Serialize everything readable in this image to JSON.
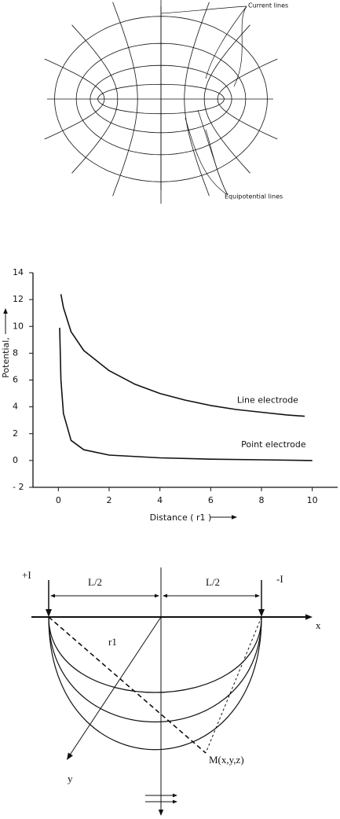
{
  "figure1": {
    "labels": [
      "Current lines",
      "Equipotential lines"
    ]
  },
  "chart_data": {
    "type": "line",
    "x_label": "Distance ( r1 )",
    "y_label": "Potential,",
    "xlim": [
      -1,
      11
    ],
    "ylim": [
      -2,
      14
    ],
    "xticks": [
      0,
      2,
      4,
      6,
      8,
      10
    ],
    "yticks": [
      {
        "value": -2,
        "label": "- 2"
      },
      0,
      2,
      4,
      6,
      8,
      10,
      12,
      14
    ],
    "series": [
      {
        "name": "Line electrode",
        "color": "#111111",
        "x": [
          0.1,
          0.2,
          0.5,
          1,
          2,
          3,
          4,
          5,
          6,
          7,
          8,
          9,
          9.7
        ],
        "values": [
          12.4,
          11.4,
          9.6,
          8.2,
          6.7,
          5.7,
          5.0,
          4.5,
          4.1,
          3.8,
          3.6,
          3.4,
          3.3
        ]
      },
      {
        "name": "Point electrode",
        "color": "#111111",
        "x": [
          0.05,
          0.1,
          0.2,
          0.5,
          1,
          2,
          4,
          6,
          8,
          10
        ],
        "values": [
          9.9,
          6.0,
          3.5,
          1.5,
          0.8,
          0.4,
          0.2,
          0.1,
          0.05,
          0.0
        ]
      }
    ]
  },
  "figure3": {
    "plus": "+I",
    "minus": "-I",
    "half_left": "L/2",
    "half_right": "L/2",
    "x_axis": "x",
    "y_axis": "y",
    "r": "r1",
    "point": "M(x,y,z)"
  }
}
